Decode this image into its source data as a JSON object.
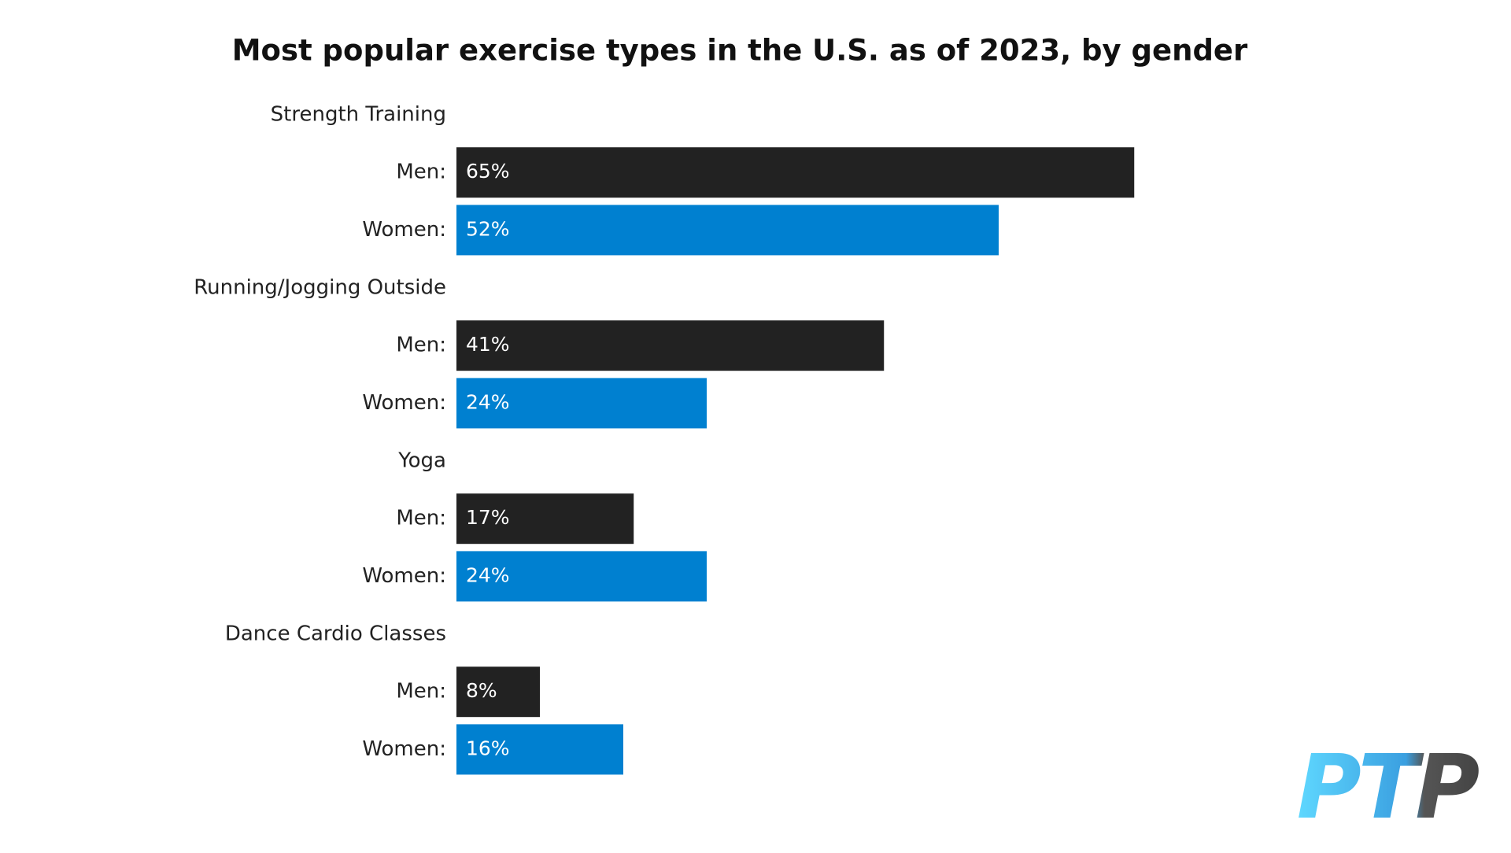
{
  "chart_data": {
    "type": "bar",
    "orientation": "horizontal",
    "title": "Most popular exercise types in the U.S. as of 2023, by gender",
    "categories": [
      "Strength Training",
      "Running/Jogging Outside",
      "Yoga",
      "Dance Cardio Classes"
    ],
    "series": [
      {
        "name": "Men:",
        "color": "#222222",
        "values": [
          65,
          41,
          17,
          8
        ],
        "value_labels": [
          "65%",
          "41%",
          "17%",
          "8%"
        ]
      },
      {
        "name": "Women:",
        "color": "#0080d0",
        "values": [
          52,
          24,
          24,
          16
        ],
        "value_labels": [
          "52%",
          "24%",
          "24%",
          "16%"
        ]
      }
    ]
  },
  "logo": "PTP"
}
